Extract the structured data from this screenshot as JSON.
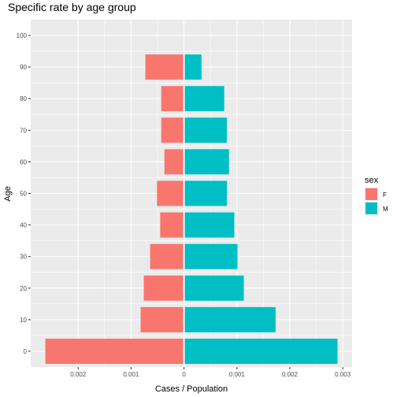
{
  "chart_data": {
    "type": "bar",
    "orientation": "horizontal",
    "title": "Specific rate by age group",
    "xlabel": "Cases / Population",
    "ylabel": "Age",
    "categories": [
      0,
      10,
      20,
      30,
      40,
      50,
      60,
      70,
      80,
      90
    ],
    "series": [
      {
        "name": "F",
        "color": "#F8766D",
        "values": [
          -0.00262,
          -0.00082,
          -0.00076,
          -0.00064,
          -0.00045,
          -0.00051,
          -0.00037,
          -0.00043,
          -0.00043,
          -0.00073
        ]
      },
      {
        "name": "M",
        "color": "#00BFC4",
        "values": [
          0.0029,
          0.00173,
          0.00113,
          0.00101,
          0.00095,
          0.00081,
          0.00085,
          0.00081,
          0.00076,
          0.00033
        ]
      }
    ],
    "xlim": [
      -0.00262,
      0.0029
    ],
    "ylim": [
      -5,
      105
    ],
    "x_ticks": [
      -0.002,
      -0.001,
      0,
      0.001,
      0.002,
      0.003
    ],
    "x_tick_labels": [
      "0.002",
      "0.001",
      "0",
      "0.001",
      "0.002",
      "0.003"
    ],
    "y_ticks": [
      0,
      10,
      20,
      30,
      40,
      50,
      60,
      70,
      80,
      90,
      100
    ],
    "y_tick_labels": [
      "0",
      "10",
      "20",
      "30",
      "40",
      "50",
      "60",
      "70",
      "80",
      "90",
      "100"
    ],
    "legend": {
      "title": "sex",
      "position": "right"
    },
    "grid": true,
    "panel_background": "#EBEBEB",
    "grid_color": "#FFFFFF"
  }
}
